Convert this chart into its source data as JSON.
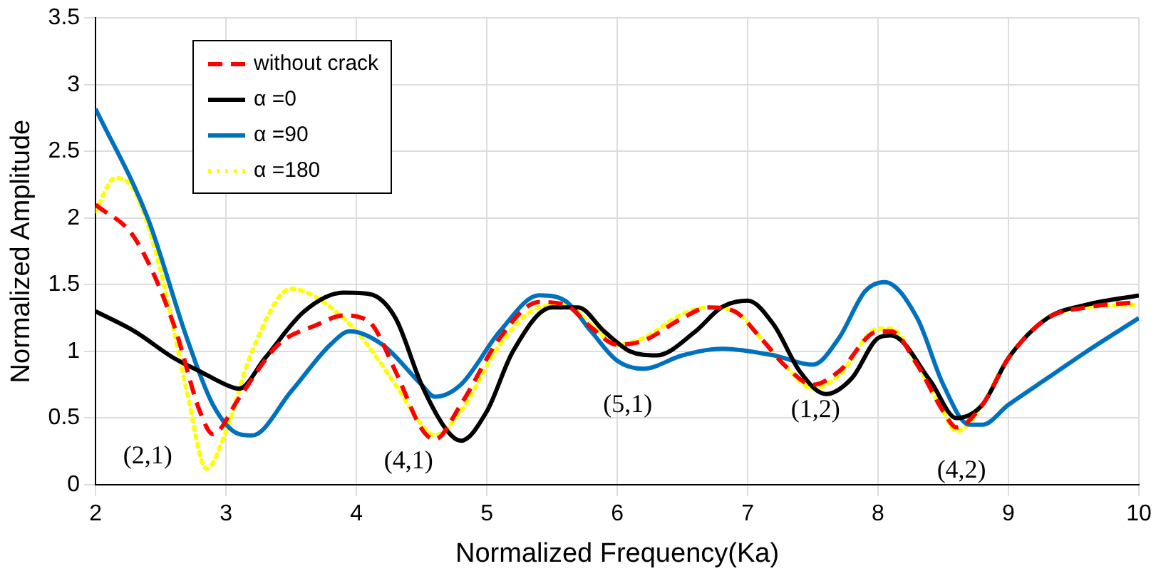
{
  "chart_data": {
    "type": "line",
    "xlabel": "Normalized Frequency(Ka)",
    "ylabel": "Normalized Amplitude",
    "xlim": [
      2,
      10
    ],
    "xticks": [
      2,
      3,
      4,
      5,
      6,
      7,
      8,
      9,
      10
    ],
    "ylim": [
      0,
      3.5
    ],
    "yticks": [
      0,
      0.5,
      1,
      1.5,
      2,
      2.5,
      3,
      3.5
    ],
    "grid": true,
    "legend": "top left",
    "marker": "none",
    "series": [
      {
        "name": "without crack",
        "color": "#ff0000",
        "line_style": "dashed",
        "x": [
          2,
          2.3,
          2.6,
          2.8,
          2.9,
          3.1,
          3.4,
          3.7,
          3.9,
          4.1,
          4.3,
          4.5,
          4.6,
          4.8,
          5.1,
          5.4,
          5.6,
          5.8,
          6.0,
          6.2,
          6.5,
          6.7,
          6.9,
          7.1,
          7.3,
          7.5,
          7.7,
          8.0,
          8.1,
          8.3,
          8.5,
          8.6,
          8.8,
          9.0,
          9.3,
          9.6,
          10
        ],
        "values": [
          2.1,
          1.85,
          1.2,
          0.55,
          0.38,
          0.65,
          1.05,
          1.2,
          1.27,
          1.22,
          0.85,
          0.42,
          0.34,
          0.6,
          1.1,
          1.37,
          1.35,
          1.18,
          1.05,
          1.08,
          1.25,
          1.33,
          1.3,
          1.1,
          0.88,
          0.75,
          0.85,
          1.15,
          1.15,
          0.9,
          0.55,
          0.43,
          0.6,
          0.95,
          1.25,
          1.33,
          1.37
        ]
      },
      {
        "name": "α =0",
        "color": "#000000",
        "line_style": "solid",
        "x": [
          2,
          2.3,
          2.6,
          2.8,
          3.0,
          3.1,
          3.3,
          3.6,
          3.9,
          4.1,
          4.3,
          4.5,
          4.7,
          4.8,
          5.0,
          5.2,
          5.5,
          5.7,
          5.9,
          6.1,
          6.3,
          6.6,
          6.8,
          7.0,
          7.2,
          7.4,
          7.6,
          7.8,
          8.0,
          8.1,
          8.4,
          8.6,
          8.8,
          9.0,
          9.3,
          9.6,
          10
        ],
        "values": [
          1.3,
          1.15,
          0.95,
          0.85,
          0.75,
          0.72,
          0.95,
          1.3,
          1.44,
          1.43,
          1.25,
          0.75,
          0.4,
          0.33,
          0.55,
          1.0,
          1.33,
          1.33,
          1.15,
          1.0,
          0.97,
          1.15,
          1.33,
          1.38,
          1.2,
          0.85,
          0.68,
          0.8,
          1.1,
          1.12,
          0.78,
          0.5,
          0.6,
          0.95,
          1.25,
          1.35,
          1.42
        ]
      },
      {
        "name": "α =90",
        "color": "#0072bd",
        "line_style": "solid",
        "x": [
          2,
          2.4,
          2.7,
          2.9,
          3.1,
          3.2,
          3.5,
          3.8,
          3.95,
          4.2,
          4.5,
          4.6,
          4.8,
          5.1,
          5.4,
          5.6,
          5.8,
          6.0,
          6.2,
          6.5,
          6.8,
          7.2,
          7.5,
          7.7,
          7.9,
          8.05,
          8.3,
          8.5,
          8.7,
          8.8,
          9.0,
          9.3,
          9.6,
          10
        ],
        "values": [
          2.82,
          2.0,
          1.1,
          0.6,
          0.38,
          0.37,
          0.7,
          1.05,
          1.15,
          1.05,
          0.75,
          0.66,
          0.75,
          1.15,
          1.42,
          1.38,
          1.15,
          0.93,
          0.87,
          0.97,
          1.02,
          0.97,
          0.9,
          1.1,
          1.45,
          1.52,
          1.25,
          0.75,
          0.45,
          0.45,
          0.6,
          0.8,
          1.0,
          1.25
        ]
      },
      {
        "name": "α =180",
        "color": "#ffff00",
        "line_style": "dotted",
        "x": [
          2,
          2.15,
          2.3,
          2.5,
          2.7,
          2.85,
          3.0,
          3.2,
          3.5,
          3.7,
          4.0,
          4.3,
          4.5,
          4.6,
          4.8,
          5.1,
          5.4,
          5.6,
          5.8,
          6.0,
          6.2,
          6.5,
          6.7,
          6.9,
          7.1,
          7.3,
          7.5,
          7.7,
          8.0,
          8.1,
          8.3,
          8.5,
          8.6,
          8.8,
          9.0,
          9.3,
          9.6,
          10
        ],
        "values": [
          2.05,
          2.3,
          2.2,
          1.6,
          0.7,
          0.12,
          0.4,
          1.0,
          1.47,
          1.4,
          1.15,
          0.75,
          0.45,
          0.37,
          0.55,
          1.05,
          1.33,
          1.35,
          1.2,
          1.05,
          1.1,
          1.28,
          1.33,
          1.3,
          1.1,
          0.88,
          0.72,
          0.82,
          1.17,
          1.17,
          0.9,
          0.55,
          0.4,
          0.6,
          0.95,
          1.25,
          1.33,
          1.35
        ]
      }
    ],
    "annotations": [
      "(2,1)",
      "(4,1)",
      "(5,1)",
      "(1,2)",
      "(4,2)"
    ]
  }
}
